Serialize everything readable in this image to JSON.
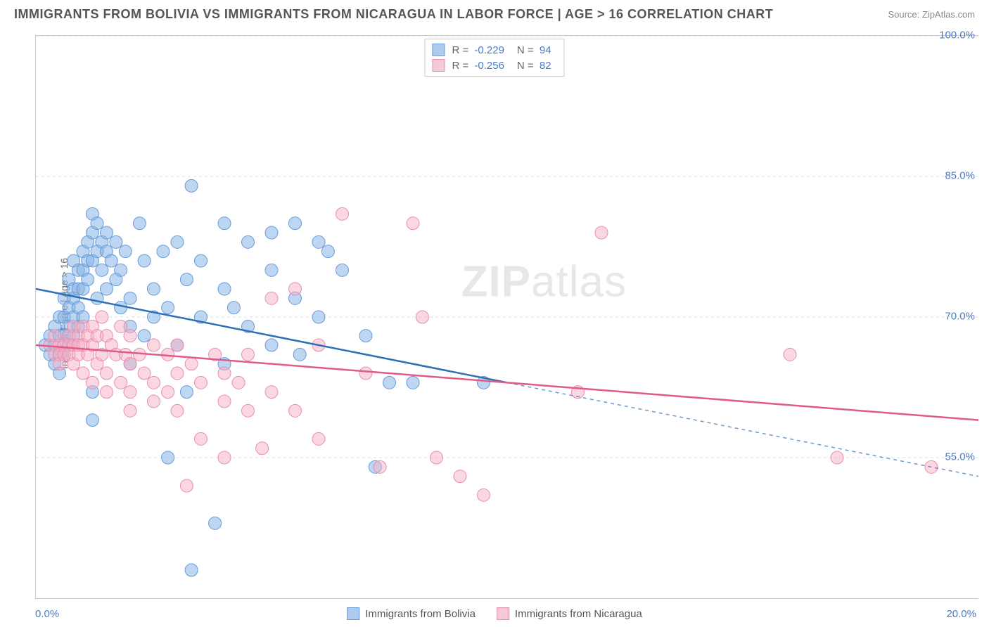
{
  "header": {
    "title": "IMMIGRANTS FROM BOLIVIA VS IMMIGRANTS FROM NICARAGUA IN LABOR FORCE | AGE > 16 CORRELATION CHART",
    "source": "Source: ZipAtlas.com"
  },
  "watermark": {
    "zip": "ZIP",
    "atlas": "atlas"
  },
  "chart": {
    "type": "scatter",
    "xlim": [
      0,
      20
    ],
    "ylim": [
      40,
      100
    ],
    "x_tick_labels": {
      "min": "0.0%",
      "max": "20.0%"
    },
    "x_ticks_minor": [
      1,
      2,
      3,
      4,
      5,
      6,
      7,
      8,
      9,
      10
    ],
    "y_gridlines": [
      55,
      70,
      85,
      100
    ],
    "y_tick_labels": [
      "55.0%",
      "70.0%",
      "85.0%",
      "100.0%"
    ],
    "y_label": "In Labor Force | Age > 16",
    "background_color": "#ffffff",
    "grid_color": "#dddddd",
    "axis_color": "#cccccc",
    "series": [
      {
        "name": "Immigrants from Bolivia",
        "color_fill": "rgba(135,180,230,0.55)",
        "color_stroke": "#6a9bd8",
        "line_color": "#2d6fb5",
        "swatch_fill": "#aecbef",
        "swatch_border": "#6a9bd8",
        "R": "-0.229",
        "N": "94",
        "marker_radius": 9,
        "regression": {
          "x1": 0,
          "y1": 73,
          "x2": 10,
          "y2": 63,
          "x2_extend": 20,
          "y2_extend": 53
        },
        "points": [
          [
            0.2,
            67
          ],
          [
            0.3,
            68
          ],
          [
            0.3,
            66
          ],
          [
            0.4,
            69
          ],
          [
            0.4,
            67
          ],
          [
            0.4,
            65
          ],
          [
            0.5,
            70
          ],
          [
            0.5,
            68
          ],
          [
            0.5,
            66
          ],
          [
            0.5,
            64
          ],
          [
            0.6,
            72
          ],
          [
            0.6,
            70
          ],
          [
            0.6,
            68
          ],
          [
            0.6,
            66
          ],
          [
            0.7,
            74
          ],
          [
            0.7,
            71
          ],
          [
            0.7,
            69
          ],
          [
            0.7,
            67
          ],
          [
            0.8,
            76
          ],
          [
            0.8,
            73
          ],
          [
            0.8,
            72
          ],
          [
            0.8,
            70
          ],
          [
            0.8,
            68
          ],
          [
            0.9,
            75
          ],
          [
            0.9,
            73
          ],
          [
            0.9,
            71
          ],
          [
            0.9,
            69
          ],
          [
            1.0,
            77
          ],
          [
            1.0,
            75
          ],
          [
            1.0,
            73
          ],
          [
            1.0,
            70
          ],
          [
            1.1,
            78
          ],
          [
            1.1,
            76
          ],
          [
            1.1,
            74
          ],
          [
            1.2,
            81
          ],
          [
            1.2,
            79
          ],
          [
            1.2,
            76
          ],
          [
            1.2,
            62
          ],
          [
            1.2,
            59
          ],
          [
            1.3,
            80
          ],
          [
            1.3,
            77
          ],
          [
            1.3,
            72
          ],
          [
            1.4,
            78
          ],
          [
            1.4,
            75
          ],
          [
            1.5,
            79
          ],
          [
            1.5,
            77
          ],
          [
            1.5,
            73
          ],
          [
            1.6,
            76
          ],
          [
            1.7,
            78
          ],
          [
            1.7,
            74
          ],
          [
            1.8,
            75
          ],
          [
            1.8,
            71
          ],
          [
            1.9,
            77
          ],
          [
            2.0,
            72
          ],
          [
            2.0,
            69
          ],
          [
            2.0,
            65
          ],
          [
            2.2,
            80
          ],
          [
            2.3,
            76
          ],
          [
            2.3,
            68
          ],
          [
            2.5,
            73
          ],
          [
            2.5,
            70
          ],
          [
            2.7,
            77
          ],
          [
            2.8,
            71
          ],
          [
            2.8,
            55
          ],
          [
            3.0,
            78
          ],
          [
            3.0,
            67
          ],
          [
            3.2,
            74
          ],
          [
            3.2,
            62
          ],
          [
            3.3,
            43
          ],
          [
            3.3,
            84
          ],
          [
            3.5,
            76
          ],
          [
            3.5,
            70
          ],
          [
            3.8,
            48
          ],
          [
            4.0,
            80
          ],
          [
            4.0,
            73
          ],
          [
            4.0,
            65
          ],
          [
            4.2,
            71
          ],
          [
            4.5,
            78
          ],
          [
            4.5,
            69
          ],
          [
            5.0,
            79
          ],
          [
            5.0,
            75
          ],
          [
            5.0,
            67
          ],
          [
            5.5,
            80
          ],
          [
            5.5,
            72
          ],
          [
            5.6,
            66
          ],
          [
            6.0,
            78
          ],
          [
            6.0,
            70
          ],
          [
            6.2,
            77
          ],
          [
            6.5,
            75
          ],
          [
            7.0,
            68
          ],
          [
            7.2,
            54
          ],
          [
            7.5,
            63
          ],
          [
            8.0,
            63
          ],
          [
            9.5,
            63
          ]
        ]
      },
      {
        "name": "Immigrants from Nicaragua",
        "color_fill": "rgba(245,175,195,0.5)",
        "color_stroke": "#e88fae",
        "line_color": "#e05a8a",
        "swatch_fill": "#f7c8d6",
        "swatch_border": "#e88fae",
        "R": "-0.256",
        "N": "82",
        "marker_radius": 9,
        "regression": {
          "x1": 0,
          "y1": 67,
          "x2": 20,
          "y2": 59
        },
        "points": [
          [
            0.3,
            67
          ],
          [
            0.4,
            66
          ],
          [
            0.4,
            68
          ],
          [
            0.5,
            67
          ],
          [
            0.5,
            66
          ],
          [
            0.5,
            65
          ],
          [
            0.6,
            67
          ],
          [
            0.6,
            66
          ],
          [
            0.7,
            68
          ],
          [
            0.7,
            67
          ],
          [
            0.7,
            66
          ],
          [
            0.8,
            69
          ],
          [
            0.8,
            67
          ],
          [
            0.8,
            65
          ],
          [
            0.9,
            68
          ],
          [
            0.9,
            67
          ],
          [
            0.9,
            66
          ],
          [
            1.0,
            69
          ],
          [
            1.0,
            67
          ],
          [
            1.0,
            64
          ],
          [
            1.1,
            68
          ],
          [
            1.1,
            66
          ],
          [
            1.2,
            69
          ],
          [
            1.2,
            67
          ],
          [
            1.2,
            63
          ],
          [
            1.3,
            68
          ],
          [
            1.3,
            65
          ],
          [
            1.4,
            70
          ],
          [
            1.4,
            66
          ],
          [
            1.5,
            68
          ],
          [
            1.5,
            64
          ],
          [
            1.5,
            62
          ],
          [
            1.6,
            67
          ],
          [
            1.7,
            66
          ],
          [
            1.8,
            69
          ],
          [
            1.8,
            63
          ],
          [
            1.9,
            66
          ],
          [
            2.0,
            68
          ],
          [
            2.0,
            65
          ],
          [
            2.0,
            62
          ],
          [
            2.0,
            60
          ],
          [
            2.2,
            66
          ],
          [
            2.3,
            64
          ],
          [
            2.5,
            67
          ],
          [
            2.5,
            63
          ],
          [
            2.5,
            61
          ],
          [
            2.8,
            66
          ],
          [
            2.8,
            62
          ],
          [
            3.0,
            67
          ],
          [
            3.0,
            64
          ],
          [
            3.0,
            60
          ],
          [
            3.2,
            52
          ],
          [
            3.3,
            65
          ],
          [
            3.5,
            63
          ],
          [
            3.5,
            57
          ],
          [
            3.8,
            66
          ],
          [
            4.0,
            64
          ],
          [
            4.0,
            61
          ],
          [
            4.0,
            55
          ],
          [
            4.3,
            63
          ],
          [
            4.5,
            66
          ],
          [
            4.5,
            60
          ],
          [
            4.8,
            56
          ],
          [
            5.0,
            72
          ],
          [
            5.0,
            62
          ],
          [
            5.5,
            73
          ],
          [
            5.5,
            60
          ],
          [
            6.0,
            67
          ],
          [
            6.0,
            57
          ],
          [
            6.5,
            81
          ],
          [
            7.0,
            64
          ],
          [
            7.3,
            54
          ],
          [
            8.0,
            80
          ],
          [
            8.2,
            70
          ],
          [
            8.5,
            55
          ],
          [
            9.0,
            53
          ],
          [
            9.5,
            51
          ],
          [
            11.5,
            62
          ],
          [
            12.0,
            79
          ],
          [
            16.0,
            66
          ],
          [
            17.0,
            55
          ],
          [
            19.0,
            54
          ]
        ]
      }
    ]
  },
  "legend_bottom": [
    {
      "label": "Immigrants from Bolivia",
      "fill": "#aecbef",
      "border": "#6a9bd8"
    },
    {
      "label": "Immigrants from Nicaragua",
      "fill": "#f7c8d6",
      "border": "#e88fae"
    }
  ]
}
